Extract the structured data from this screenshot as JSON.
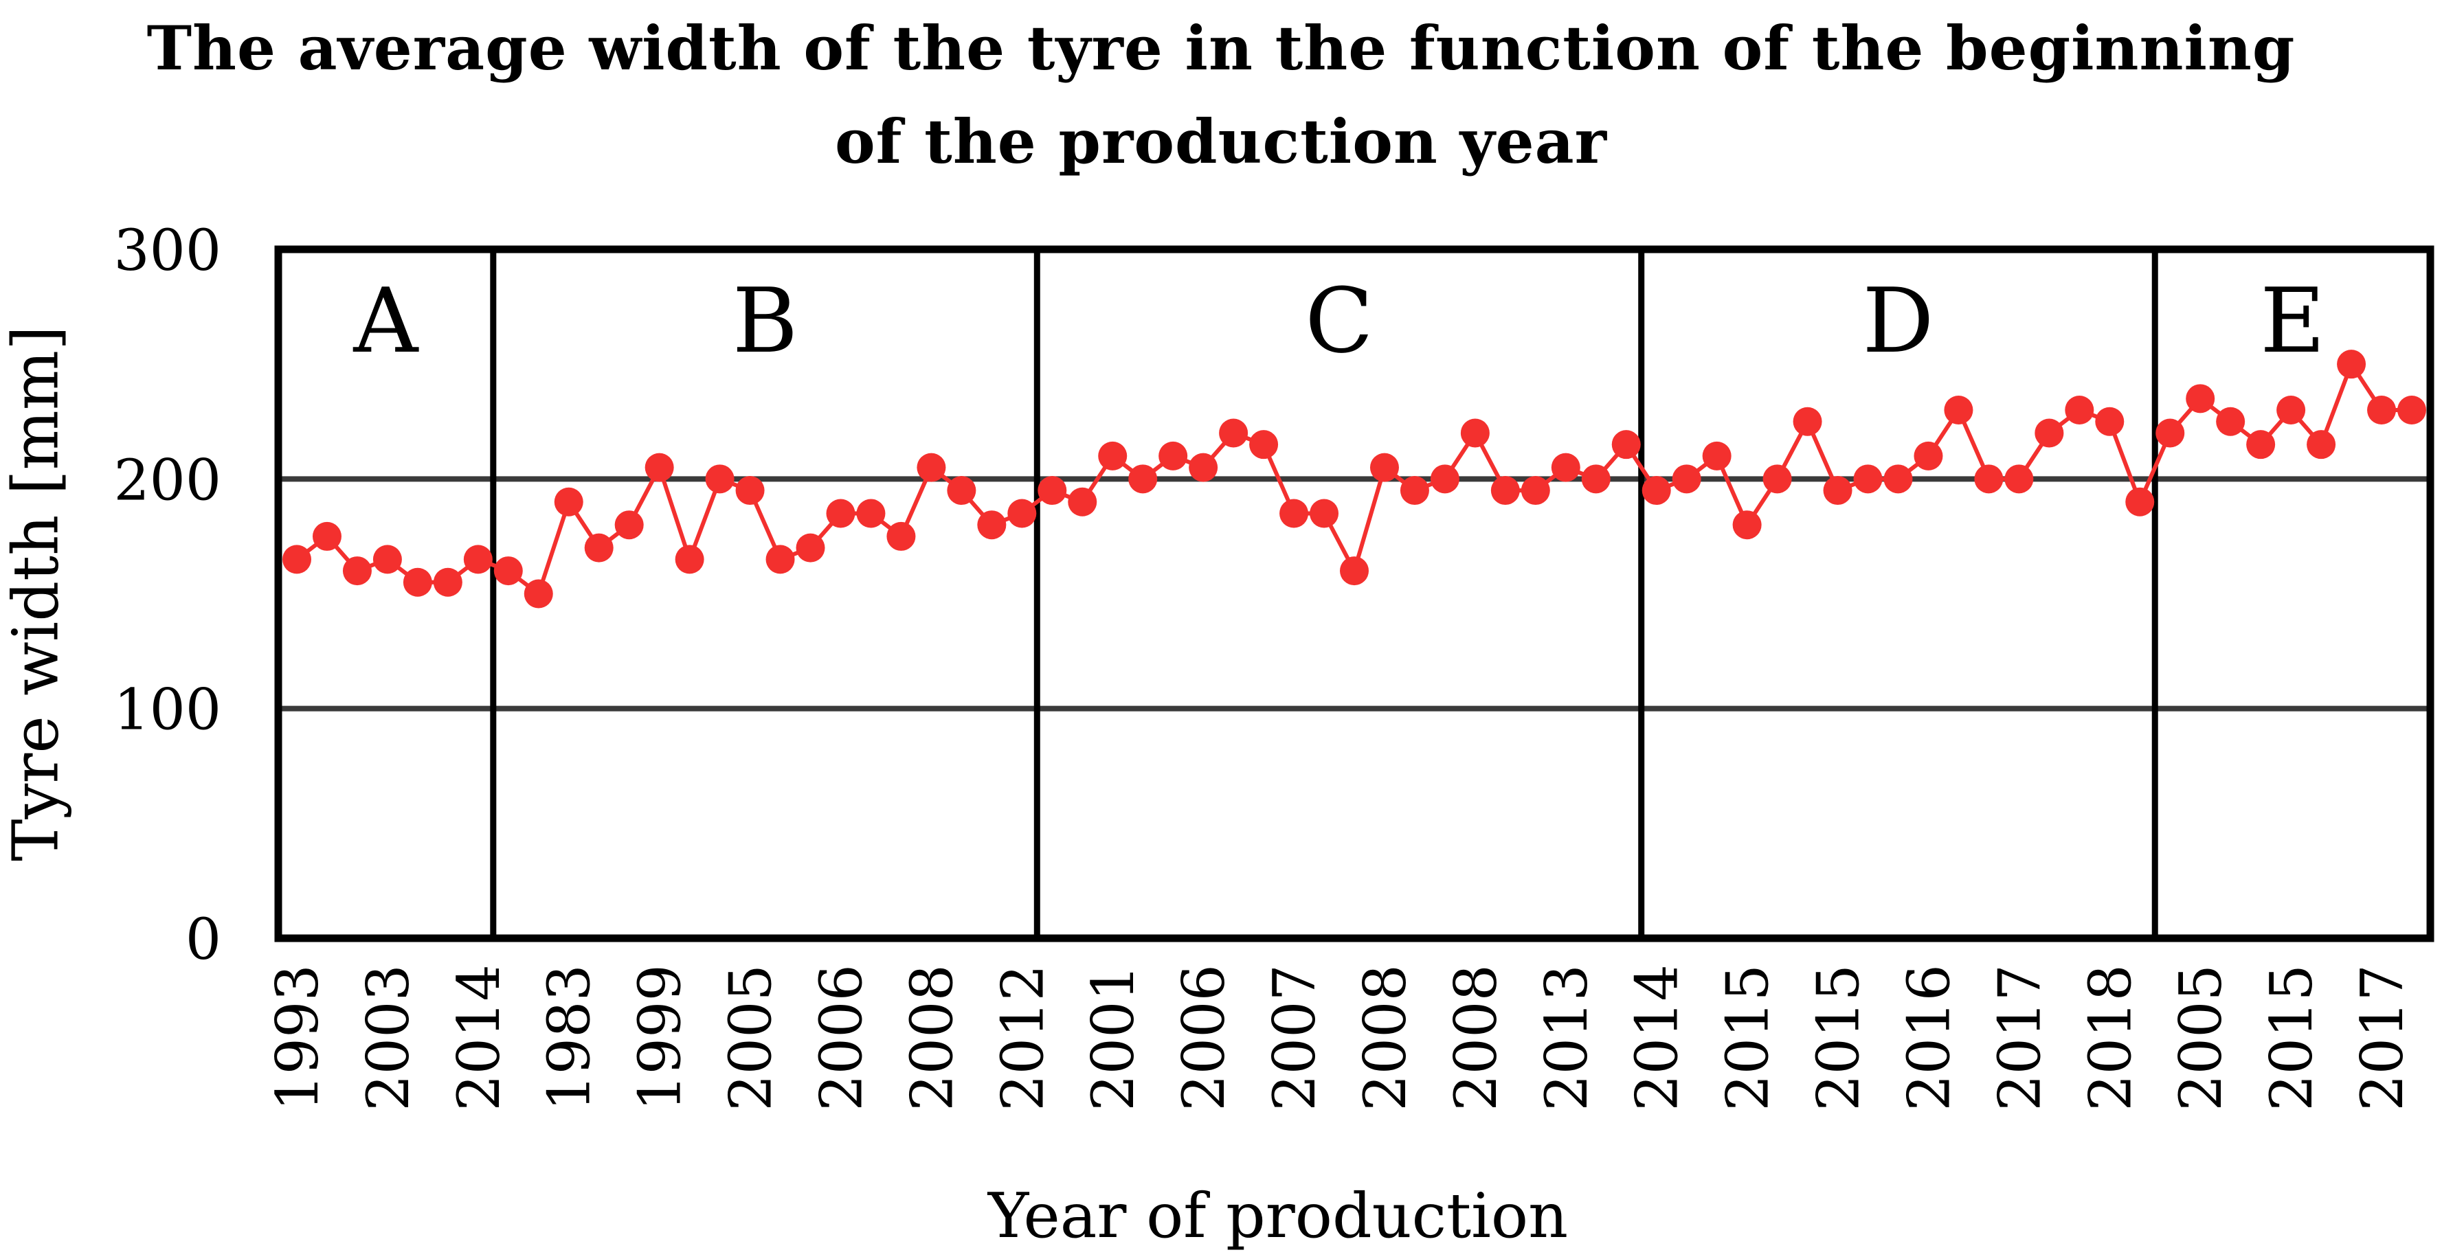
{
  "figure": {
    "background_color": "#ffffff",
    "text_color": "#000000"
  },
  "chart_data": {
    "type": "line",
    "title": "The average width of the tyre in the function of the beginning of the production year",
    "title_lines": [
      "The average width of the tyre in the function of the beginning",
      "of the production year"
    ],
    "xlabel": "Year of production",
    "ylabel": "Tyre width [mm]",
    "ylim": [
      0,
      300
    ],
    "yticks": [
      300,
      200,
      100,
      0
    ],
    "gridlines_y": [
      100,
      200
    ],
    "grid_on": true,
    "legend": "none",
    "marker": "circle",
    "series_color": "#f3302e",
    "grid_color": "#3a3a3a",
    "frame_color": "#000000",
    "tick_every": 3,
    "tick_labels": [
      "1993",
      "2003",
      "2014",
      "1983",
      "1999",
      "2005",
      "2006",
      "2008",
      "2012",
      "2001",
      "2006",
      "2007",
      "2008",
      "2008",
      "2013",
      "2014",
      "2015",
      "2015",
      "2016",
      "2017",
      "2018",
      "2005",
      "2015",
      "2017"
    ],
    "sections": [
      {
        "label": "A",
        "from": 0,
        "to": 6
      },
      {
        "label": "B",
        "from": 7,
        "to": 24
      },
      {
        "label": "C",
        "from": 25,
        "to": 44
      },
      {
        "label": "D",
        "from": 45,
        "to": 61
      },
      {
        "label": "E",
        "from": 62,
        "to": 70
      }
    ],
    "values": [
      165,
      175,
      160,
      165,
      155,
      155,
      165,
      160,
      150,
      190,
      170,
      180,
      205,
      165,
      200,
      195,
      165,
      170,
      185,
      185,
      175,
      205,
      195,
      180,
      185,
      195,
      190,
      210,
      200,
      210,
      205,
      220,
      215,
      185,
      185,
      160,
      205,
      195,
      200,
      220,
      195,
      195,
      205,
      200,
      215,
      195,
      200,
      210,
      180,
      200,
      225,
      195,
      200,
      200,
      210,
      230,
      200,
      200,
      220,
      230,
      225,
      190,
      220,
      235,
      225,
      215,
      230,
      215,
      250,
      230,
      230
    ]
  }
}
